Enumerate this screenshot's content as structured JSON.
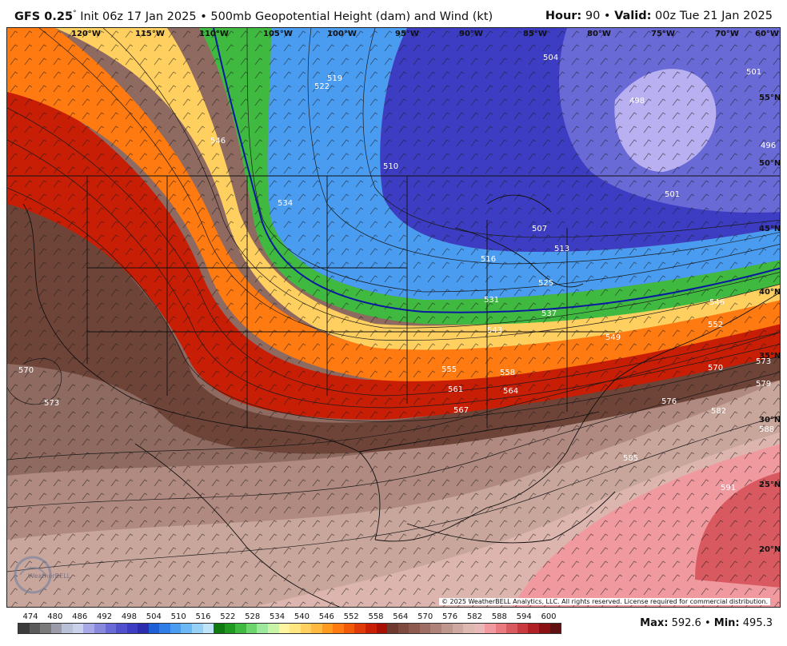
{
  "header": {
    "model": "GFS 0.25",
    "degree": "°",
    "init": "Init 06z 17 Jan 2025",
    "bullet": "•",
    "field": "500mb Geopotential Height (dam) and Wind (kt)",
    "hour_label": "Hour:",
    "hour_value": "90",
    "valid_label": "Valid:",
    "valid_value": "00z Tue 21 Jan 2025"
  },
  "map": {
    "longitudes": [
      "120°W",
      "115°W",
      "110°W",
      "105°W",
      "100°W",
      "95°W",
      "90°W",
      "85°W",
      "80°W",
      "75°W",
      "70°W",
      "60°W"
    ],
    "latitudes": [
      "55°N",
      "50°N",
      "45°N",
      "40°N",
      "35°N",
      "30°N",
      "25°N",
      "20°N"
    ],
    "contour_labels": [
      "504",
      "501",
      "498",
      "496",
      "501",
      "507",
      "513",
      "516",
      "525",
      "531",
      "537",
      "543",
      "549",
      "552",
      "546",
      "555",
      "558",
      "561",
      "564",
      "567",
      "570",
      "570",
      "573",
      "573",
      "576",
      "579",
      "582",
      "585",
      "588",
      "591",
      "510",
      "519",
      "522",
      "534",
      "546"
    ],
    "copyright": "© 2025 WeatherBELL Analytics, LLC. All rights reserved. License required for commercial distribution.",
    "logo_text": "WeatherBELL"
  },
  "legend": {
    "values": [
      "474",
      "480",
      "486",
      "492",
      "498",
      "504",
      "510",
      "516",
      "522",
      "528",
      "534",
      "540",
      "546",
      "552",
      "558",
      "564",
      "570",
      "576",
      "582",
      "588",
      "594",
      "600"
    ],
    "colors": [
      "#3b3b3b",
      "#5a5a5a",
      "#7a7a7a",
      "#9a9aa8",
      "#b8c0d8",
      "#c9d0ea",
      "#a8a8e6",
      "#8888dd",
      "#6a6ad6",
      "#5050cc",
      "#3d3dc3",
      "#2c2caf",
      "#1f5fd6",
      "#2f7ee8",
      "#4a9cf0",
      "#6cb8f4",
      "#96d0f6",
      "#bfe4f8",
      "#0f7a0f",
      "#1f9a1f",
      "#3fb93f",
      "#6cd56c",
      "#9ee89e",
      "#c9f4a8",
      "#fff4a0",
      "#ffe680",
      "#ffd060",
      "#ffb840",
      "#ff9a20",
      "#ff7a10",
      "#f25a0a",
      "#e03a08",
      "#c81e06",
      "#a81004",
      "#6e3a30",
      "#7e4a40",
      "#8e5a50",
      "#9e6e64",
      "#ae8278",
      "#be968c",
      "#cea8a0",
      "#dcb8b0",
      "#e8b8b8",
      "#f09aa0",
      "#e87a80",
      "#d85a60",
      "#c83a40",
      "#b02024",
      "#8a1014",
      "#601010"
    ],
    "max_label": "Max:",
    "max_value": "592.6",
    "min_label": "Min:",
    "min_value": "495.3"
  }
}
